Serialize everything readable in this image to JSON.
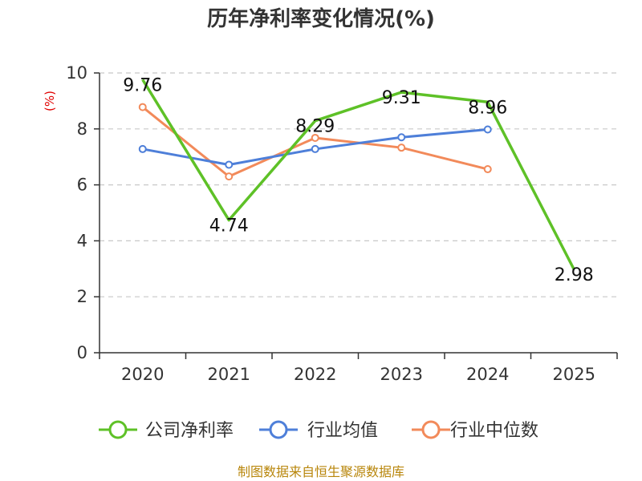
{
  "chart_data": {
    "type": "line",
    "title": "历年净利率变化情况(%)",
    "ylabel": "(%)",
    "xlabel": "",
    "categories": [
      "2020",
      "2021",
      "2022",
      "2023",
      "2024",
      "2025"
    ],
    "ylim": [
      0,
      10
    ],
    "yticks": [
      0,
      2,
      4,
      6,
      8,
      10
    ],
    "grid": true,
    "legend_position": "bottom",
    "series": [
      {
        "name": "公司净利率",
        "color": "#5ec127",
        "values": [
          9.76,
          4.74,
          8.29,
          9.31,
          8.96,
          2.98
        ],
        "labels": [
          "9.76",
          "4.74",
          "8.29",
          "9.31",
          "8.96",
          "2.98"
        ]
      },
      {
        "name": "行业均值",
        "color": "#4e7fd9",
        "values": [
          7.28,
          6.72,
          7.28,
          7.7,
          7.98,
          null
        ]
      },
      {
        "name": "行业中位数",
        "color": "#f28a5a",
        "values": [
          8.78,
          6.3,
          7.68,
          7.33,
          6.56,
          null
        ]
      }
    ],
    "source": "制图数据来自恒生聚源数据库"
  }
}
